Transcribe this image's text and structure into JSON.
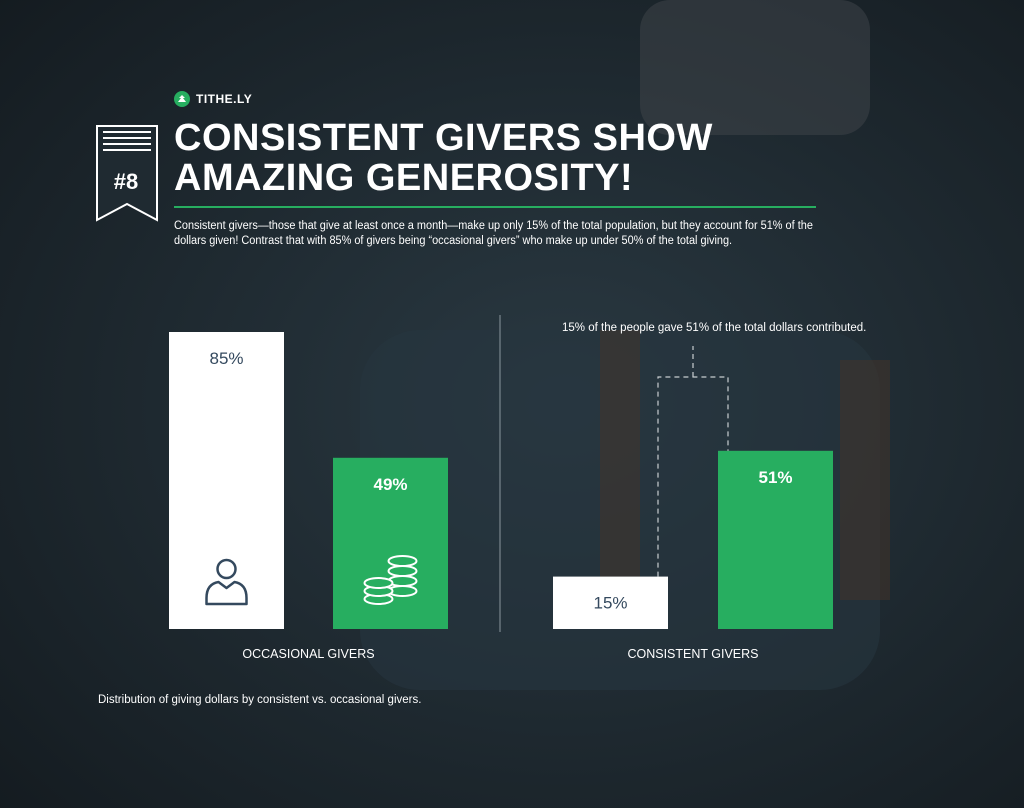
{
  "brand": {
    "name": "TITHE.LY"
  },
  "ribbon": {
    "number": "#8"
  },
  "header": {
    "title_line1": "CONSISTENT GIVERS SHOW",
    "title_line2": "AMAZING GENEROSITY!"
  },
  "intro": "Consistent givers—those that give at least once a month—make up only 15% of the total population, but they account for 51% of the dollars given! Contrast that with 85% of givers being “occasional givers” who make up under 50% of the total giving.",
  "colors": {
    "green": "#27ae60",
    "white": "#ffffff",
    "background": "#1f2a31",
    "label_dark": "#34495e"
  },
  "chart_data": {
    "type": "bar",
    "groups": [
      {
        "label": "OCCASIONAL GIVERS",
        "bars": [
          {
            "value": 85,
            "label": "85%",
            "color": "#ffffff",
            "icon": "person-icon"
          },
          {
            "value": 49,
            "label": "49%",
            "color": "#27ae60",
            "icon": "coins-icon"
          }
        ]
      },
      {
        "label": "CONSISTENT GIVERS",
        "bars": [
          {
            "value": 15,
            "label": "15%",
            "color": "#ffffff"
          },
          {
            "value": 51,
            "label": "51%",
            "color": "#27ae60"
          }
        ]
      }
    ],
    "annotation": "15% of the people gave 51% of the total dollars contributed.",
    "caption": "Distribution of giving dollars by consistent vs. occasional givers.",
    "ylim": [
      0,
      85
    ]
  }
}
